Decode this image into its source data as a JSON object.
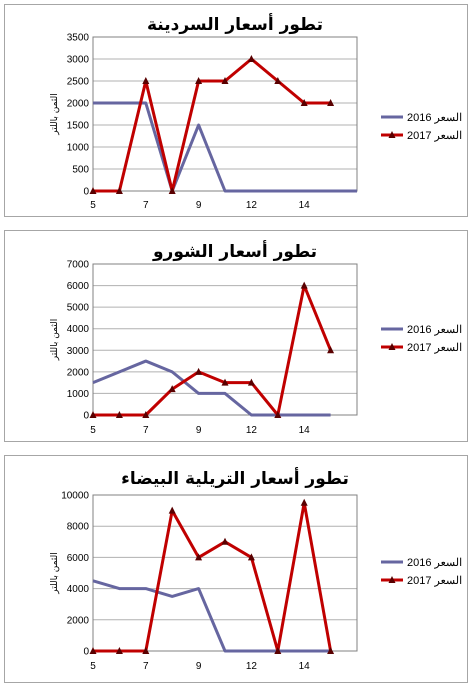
{
  "colors": {
    "s2016": "#6666a0",
    "s2017": "#c00000",
    "marker": "#5a0000",
    "grid": "#b0b0b0",
    "axis": "#808080"
  },
  "chart_data": [
    {
      "type": "line",
      "title": "تطور أسعار السردينة",
      "ylabel": "الثمن باللتر",
      "x": [
        5,
        6,
        7,
        8,
        9,
        10,
        11,
        12,
        13,
        14,
        15
      ],
      "xticks": [
        5,
        7,
        9,
        12,
        14
      ],
      "xtick_positions": [
        5,
        7,
        9,
        11,
        13
      ],
      "ylim": [
        0,
        3500
      ],
      "yticks": [
        0,
        500,
        1000,
        1500,
        2000,
        2500,
        3000,
        3500
      ],
      "legend": "right",
      "series": [
        {
          "name": "2016 السعر",
          "values": [
            2000,
            2000,
            2000,
            0,
            1500,
            0,
            0,
            0,
            0,
            0,
            0
          ],
          "color": "#6666a0",
          "marker": "none"
        },
        {
          "name": "2017 السعر",
          "values": [
            0,
            0,
            2500,
            0,
            2500,
            2500,
            3000,
            2500,
            2000,
            2000,
            null
          ],
          "color": "#c00000",
          "marker": "triangle"
        }
      ]
    },
    {
      "type": "line",
      "title": "تطور أسعار الشورو",
      "ylabel": "الثمن باللتر",
      "x": [
        5,
        6,
        7,
        8,
        9,
        10,
        11,
        12,
        13,
        14,
        15
      ],
      "xticks": [
        5,
        7,
        9,
        12,
        14
      ],
      "xtick_positions": [
        5,
        7,
        9,
        11,
        13
      ],
      "ylim": [
        0,
        7000
      ],
      "yticks": [
        0,
        1000,
        2000,
        3000,
        4000,
        5000,
        6000,
        7000
      ],
      "legend": "right",
      "series": [
        {
          "name": "2016 السعر",
          "values": [
            1500,
            2000,
            2500,
            2000,
            1000,
            1000,
            0,
            0,
            0,
            0,
            null
          ],
          "color": "#6666a0",
          "marker": "none"
        },
        {
          "name": "2017 السعر",
          "values": [
            0,
            0,
            0,
            1200,
            2000,
            1500,
            1500,
            0,
            6000,
            3000,
            null
          ],
          "color": "#c00000",
          "marker": "triangle"
        }
      ]
    },
    {
      "type": "line",
      "title": "تطور أسعار التريلية البيضاء",
      "ylabel": "الثمن باللتر",
      "x": [
        5,
        6,
        7,
        8,
        9,
        10,
        11,
        12,
        13,
        14,
        15
      ],
      "xticks": [
        5,
        7,
        9,
        12,
        14
      ],
      "xtick_positions": [
        5,
        7,
        9,
        11,
        13
      ],
      "ylim": [
        0,
        10000
      ],
      "yticks": [
        0,
        2000,
        4000,
        6000,
        8000,
        10000
      ],
      "legend": "right",
      "series": [
        {
          "name": "2016 السعر",
          "values": [
            4500,
            4000,
            4000,
            3500,
            4000,
            0,
            0,
            0,
            0,
            0,
            null
          ],
          "color": "#6666a0",
          "marker": "none"
        },
        {
          "name": "2017 السعر",
          "values": [
            0,
            0,
            0,
            9000,
            6000,
            7000,
            6000,
            0,
            9500,
            0,
            null
          ],
          "color": "#c00000",
          "marker": "triangle"
        }
      ]
    }
  ]
}
